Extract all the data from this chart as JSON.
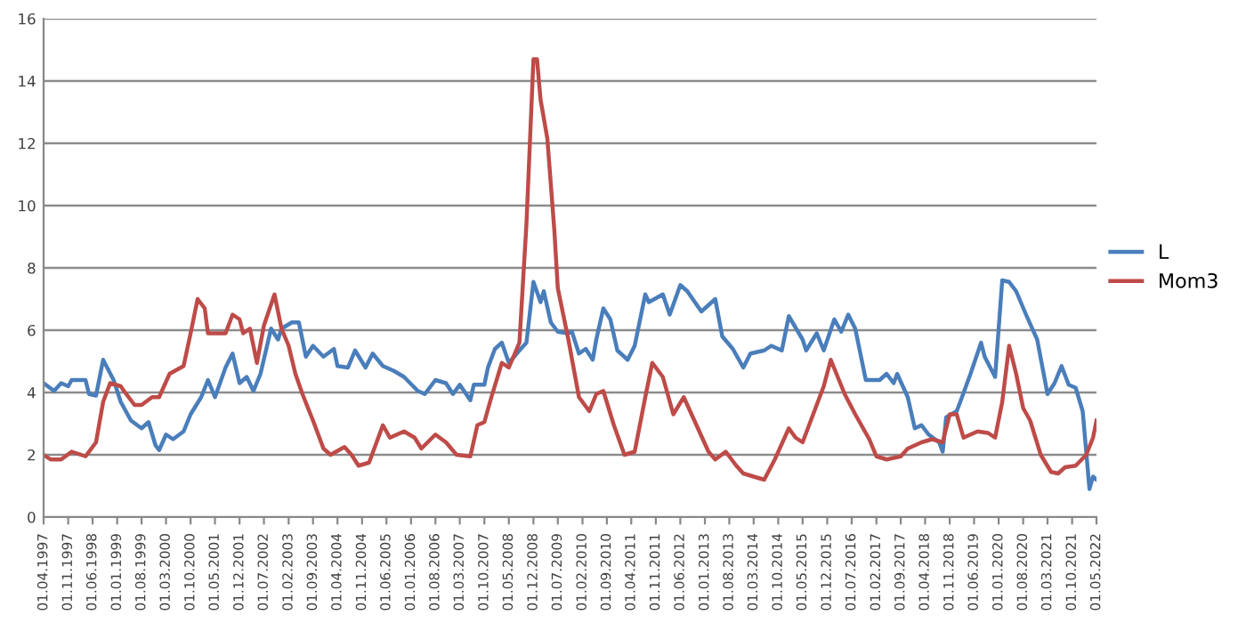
{
  "chart_data": {
    "type": "line",
    "xlim": [
      "1997-04",
      "2022-05"
    ],
    "xticks": [
      {
        "value": "1997-04",
        "label": "01.04.1997"
      },
      {
        "value": "1997-11",
        "label": "01.11.1997"
      },
      {
        "value": "1998-06",
        "label": "01.06.1998"
      },
      {
        "value": "1999-01",
        "label": "01.01.1999"
      },
      {
        "value": "1999-08",
        "label": "01.08.1999"
      },
      {
        "value": "2000-03",
        "label": "01.03.2000"
      },
      {
        "value": "2000-10",
        "label": "01.10.2000"
      },
      {
        "value": "2001-05",
        "label": "01.05.2001"
      },
      {
        "value": "2001-12",
        "label": "01.12.2001"
      },
      {
        "value": "2002-07",
        "label": "01.07.2002"
      },
      {
        "value": "2003-02",
        "label": "01.02.2003"
      },
      {
        "value": "2003-09",
        "label": "01.09.2003"
      },
      {
        "value": "2004-04",
        "label": "01.04.2004"
      },
      {
        "value": "2004-11",
        "label": "01.11.2004"
      },
      {
        "value": "2005-06",
        "label": "01.06.2005"
      },
      {
        "value": "2006-01",
        "label": "01.01.2006"
      },
      {
        "value": "2006-08",
        "label": "01.08.2006"
      },
      {
        "value": "2007-03",
        "label": "01.03.2007"
      },
      {
        "value": "2007-10",
        "label": "01.10.2007"
      },
      {
        "value": "2008-05",
        "label": "01.05.2008"
      },
      {
        "value": "2008-12",
        "label": "01.12.2008"
      },
      {
        "value": "2009-07",
        "label": "01.07.2009"
      },
      {
        "value": "2010-02",
        "label": "01.02.2010"
      },
      {
        "value": "2010-09",
        "label": "01.09.2010"
      },
      {
        "value": "2011-04",
        "label": "01.04.2011"
      },
      {
        "value": "2011-11",
        "label": "01.11.2011"
      },
      {
        "value": "2012-06",
        "label": "01.06.2012"
      },
      {
        "value": "2013-01",
        "label": "01.01.2013"
      },
      {
        "value": "2013-08",
        "label": "01.08.2013"
      },
      {
        "value": "2014-03",
        "label": "01.03.2014"
      },
      {
        "value": "2014-10",
        "label": "01.10.2014"
      },
      {
        "value": "2015-05",
        "label": "01.05.2015"
      },
      {
        "value": "2015-12",
        "label": "01.12.2015"
      },
      {
        "value": "2016-07",
        "label": "01.07.2016"
      },
      {
        "value": "2017-02",
        "label": "01.02.2017"
      },
      {
        "value": "2017-09",
        "label": "01.09.2017"
      },
      {
        "value": "2018-04",
        "label": "01.04.2018"
      },
      {
        "value": "2018-11",
        "label": "01.11.2018"
      },
      {
        "value": "2019-06",
        "label": "01.06.2019"
      },
      {
        "value": "2020-01",
        "label": "01.01.2020"
      },
      {
        "value": "2020-08",
        "label": "01.08.2020"
      },
      {
        "value": "2021-03",
        "label": "01.03.2021"
      },
      {
        "value": "2021-10",
        "label": "01.10.2021"
      },
      {
        "value": "2022-05",
        "label": "01.05.2022"
      }
    ],
    "ylim": [
      0,
      16
    ],
    "yticks": [
      0,
      2,
      4,
      6,
      8,
      10,
      12,
      14,
      16
    ],
    "grid": "y",
    "legend": "right",
    "series": [
      {
        "name": "L",
        "color": "#4a7ebb",
        "x": [
          "1997-04",
          "1997-07",
          "1997-09",
          "1997-11",
          "1997-12",
          "1998-02",
          "1998-04",
          "1998-05",
          "1998-07",
          "1998-09",
          "1998-12",
          "1999-02",
          "1999-05",
          "1999-08",
          "1999-10",
          "1999-12",
          "2000-01",
          "2000-03",
          "2000-05",
          "2000-08",
          "2000-10",
          "2001-01",
          "2001-03",
          "2001-05",
          "2001-08",
          "2001-10",
          "2001-12",
          "2002-02",
          "2002-04",
          "2002-06",
          "2002-09",
          "2002-11",
          "2002-12",
          "2003-03",
          "2003-05",
          "2003-07",
          "2003-09",
          "2003-12",
          "2004-03",
          "2004-04",
          "2004-07",
          "2004-09",
          "2004-12",
          "2005-02",
          "2005-05",
          "2005-08",
          "2005-11",
          "2006-03",
          "2006-05",
          "2006-08",
          "2006-11",
          "2007-01",
          "2007-03",
          "2007-06",
          "2007-07",
          "2007-10",
          "2007-11",
          "2008-01",
          "2008-03",
          "2008-05",
          "2008-08",
          "2008-10",
          "2008-12",
          "2009-02",
          "2009-03",
          "2009-05",
          "2009-07",
          "2009-10",
          "2009-11",
          "2010-01",
          "2010-03",
          "2010-05",
          "2010-06",
          "2010-08",
          "2010-10",
          "2010-12",
          "2011-03",
          "2011-05",
          "2011-08",
          "2011-09",
          "2012-01",
          "2012-03",
          "2012-06",
          "2012-08",
          "2012-12",
          "2013-04",
          "2013-06",
          "2013-09",
          "2013-12",
          "2014-02",
          "2014-06",
          "2014-08",
          "2014-11",
          "2015-01",
          "2015-05",
          "2015-06",
          "2015-09",
          "2015-11",
          "2016-02",
          "2016-04",
          "2016-06",
          "2016-08",
          "2016-11",
          "2017-03",
          "2017-05",
          "2017-07",
          "2017-08",
          "2017-11",
          "2018-01",
          "2018-03",
          "2018-05",
          "2018-08",
          "2018-09",
          "2018-10",
          "2019-01",
          "2019-02",
          "2019-05",
          "2019-08",
          "2019-09",
          "2019-12",
          "2020-02",
          "2020-04",
          "2020-06",
          "2020-09",
          "2020-12",
          "2021-03",
          "2021-05",
          "2021-07",
          "2021-09",
          "2021-11",
          "2022-01",
          "2022-03",
          "2022-04",
          "2022-05"
        ],
        "values": [
          4.3,
          4.05,
          4.3,
          4.2,
          4.4,
          4.4,
          4.4,
          3.95,
          3.9,
          5.05,
          4.4,
          3.7,
          3.1,
          2.85,
          3.05,
          2.3,
          2.15,
          2.65,
          2.5,
          2.75,
          3.3,
          3.85,
          4.4,
          3.85,
          4.8,
          5.25,
          4.3,
          4.5,
          4.05,
          4.6,
          6.05,
          5.7,
          6.05,
          6.25,
          6.25,
          5.15,
          5.5,
          5.15,
          5.4,
          4.85,
          4.8,
          5.35,
          4.8,
          5.25,
          4.85,
          4.7,
          4.5,
          4.05,
          3.95,
          4.4,
          4.3,
          3.95,
          4.25,
          3.75,
          4.25,
          4.25,
          4.8,
          5.4,
          5.6,
          4.95,
          5.35,
          5.6,
          7.55,
          6.9,
          7.25,
          6.25,
          5.95,
          5.9,
          5.95,
          5.25,
          5.4,
          5.05,
          5.7,
          6.7,
          6.35,
          5.35,
          5.05,
          5.5,
          7.15,
          6.9,
          7.15,
          6.5,
          7.45,
          7.25,
          6.6,
          7.0,
          5.8,
          5.4,
          4.8,
          5.25,
          5.35,
          5.5,
          5.35,
          6.45,
          5.7,
          5.35,
          5.9,
          5.35,
          6.35,
          5.95,
          6.5,
          6.05,
          4.4,
          4.4,
          4.6,
          4.3,
          4.6,
          3.85,
          2.85,
          2.95,
          2.65,
          2.4,
          2.1,
          3.2,
          3.4,
          3.7,
          4.6,
          5.6,
          5.15,
          4.5,
          7.6,
          7.55,
          7.25,
          6.45,
          5.7,
          3.95,
          4.3,
          4.85,
          4.25,
          4.15,
          3.4,
          0.9,
          1.3,
          1.2
        ]
      },
      {
        "name": "Mom3",
        "color": "#be4b48",
        "x": [
          "1997-04",
          "1997-06",
          "1997-09",
          "1997-12",
          "1998-04",
          "1998-07",
          "1998-09",
          "1998-11",
          "1999-02",
          "1999-03",
          "1999-06",
          "1999-08",
          "1999-11",
          "2000-01",
          "2000-04",
          "2000-08",
          "2000-10",
          "2000-12",
          "2001-02",
          "2001-03",
          "2001-08",
          "2001-10",
          "2001-12",
          "2002-01",
          "2002-03",
          "2002-05",
          "2002-07",
          "2002-10",
          "2002-12",
          "2003-02",
          "2003-04",
          "2003-06",
          "2003-09",
          "2003-12",
          "2004-02",
          "2004-06",
          "2004-08",
          "2004-10",
          "2005-01",
          "2005-05",
          "2005-07",
          "2005-11",
          "2006-02",
          "2006-04",
          "2006-08",
          "2006-11",
          "2007-02",
          "2007-06",
          "2007-08",
          "2007-10",
          "2007-12",
          "2008-03",
          "2008-05",
          "2008-08",
          "2008-10",
          "2008-12",
          "2009-01",
          "2009-02",
          "2009-04",
          "2009-06",
          "2009-07",
          "2009-10",
          "2010-01",
          "2010-04",
          "2010-06",
          "2010-08",
          "2010-11",
          "2011-02",
          "2011-05",
          "2011-08",
          "2011-10",
          "2012-01",
          "2012-04",
          "2012-07",
          "2012-11",
          "2013-02",
          "2013-04",
          "2013-07",
          "2013-10",
          "2013-12",
          "2014-03",
          "2014-06",
          "2014-09",
          "2015-01",
          "2015-03",
          "2015-05",
          "2015-08",
          "2015-11",
          "2016-01",
          "2016-05",
          "2016-08",
          "2016-12",
          "2017-02",
          "2017-05",
          "2017-09",
          "2017-11",
          "2018-03",
          "2018-06",
          "2018-09",
          "2018-11",
          "2019-01",
          "2019-03",
          "2019-07",
          "2019-10",
          "2019-12",
          "2020-02",
          "2020-04",
          "2020-06",
          "2020-08",
          "2020-10",
          "2021-01",
          "2021-04",
          "2021-06",
          "2021-08",
          "2021-11",
          "2022-02",
          "2022-04",
          "2022-05"
        ],
        "values": [
          2.0,
          1.85,
          1.85,
          2.1,
          1.95,
          2.4,
          3.7,
          4.3,
          4.2,
          4.05,
          3.6,
          3.6,
          3.85,
          3.85,
          4.6,
          4.85,
          5.9,
          7.0,
          6.7,
          5.9,
          5.9,
          6.5,
          6.35,
          5.9,
          6.05,
          4.95,
          6.15,
          7.15,
          6.05,
          5.5,
          4.6,
          3.95,
          3.1,
          2.2,
          2.0,
          2.25,
          2.0,
          1.65,
          1.75,
          2.95,
          2.55,
          2.75,
          2.55,
          2.2,
          2.65,
          2.4,
          2.0,
          1.95,
          2.95,
          3.05,
          3.85,
          4.95,
          4.8,
          5.6,
          9.4,
          14.7,
          14.7,
          13.4,
          12.15,
          9.2,
          7.35,
          5.7,
          3.85,
          3.4,
          3.95,
          4.05,
          2.95,
          2.0,
          2.1,
          3.85,
          4.95,
          4.5,
          3.3,
          3.85,
          2.85,
          2.1,
          1.85,
          2.1,
          1.65,
          1.4,
          1.3,
          1.2,
          1.85,
          2.85,
          2.55,
          2.4,
          3.3,
          4.2,
          5.05,
          3.95,
          3.3,
          2.5,
          1.95,
          1.85,
          1.95,
          2.2,
          2.4,
          2.5,
          2.4,
          3.3,
          3.3,
          2.55,
          2.75,
          2.7,
          2.55,
          3.7,
          5.5,
          4.6,
          3.5,
          3.1,
          2.0,
          1.45,
          1.4,
          1.6,
          1.65,
          2.0,
          2.55,
          3.1
        ]
      }
    ]
  }
}
